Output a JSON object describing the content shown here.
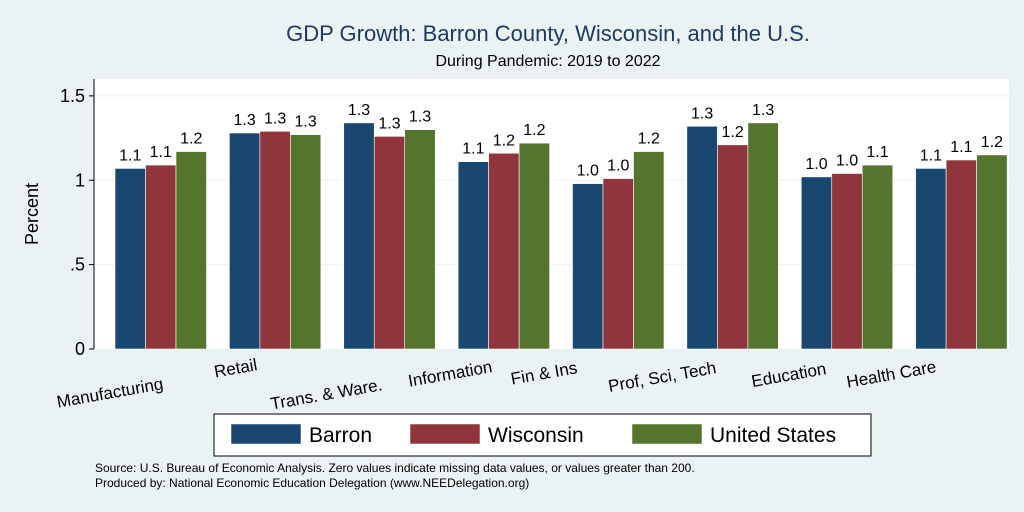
{
  "chart_data": {
    "type": "bar",
    "title": "GDP Growth: Barron County, Wisconsin, and the U.S.",
    "subtitle": "During Pandemic: 2019 to 2022",
    "ylabel": "Percent",
    "xlabel": "",
    "ylim": [
      0,
      1.6
    ],
    "yticks": [
      {
        "value": 0,
        "label": "0"
      },
      {
        "value": 0.5,
        "label": ".5"
      },
      {
        "value": 1,
        "label": "1"
      },
      {
        "value": 1.5,
        "label": "1.5"
      }
    ],
    "grid": true,
    "legend_position": "bottom",
    "categories": [
      "Manufacturing",
      "Retail",
      "Trans. & Ware.",
      "Information",
      "Fin & Ins",
      "Prof, Sci, Tech",
      "Education",
      "Health Care"
    ],
    "series": [
      {
        "name": "Barron",
        "color": "#1a476f",
        "values": [
          1.07,
          1.28,
          1.34,
          1.11,
          0.98,
          1.32,
          1.02,
          1.07
        ],
        "labels": [
          "1.1",
          "1.3",
          "1.3",
          "1.1",
          "1.0",
          "1.3",
          "1.0",
          "1.1"
        ]
      },
      {
        "name": "Wisconsin",
        "color": "#90353b",
        "values": [
          1.09,
          1.29,
          1.26,
          1.16,
          1.01,
          1.21,
          1.04,
          1.12
        ],
        "labels": [
          "1.1",
          "1.3",
          "1.3",
          "1.2",
          "1.0",
          "1.2",
          "1.0",
          "1.1"
        ]
      },
      {
        "name": "United States",
        "color": "#55752f",
        "values": [
          1.17,
          1.27,
          1.3,
          1.22,
          1.17,
          1.34,
          1.09,
          1.15
        ],
        "labels": [
          "1.2",
          "1.3",
          "1.3",
          "1.2",
          "1.2",
          "1.3",
          "1.1",
          "1.2"
        ]
      }
    ]
  },
  "notes": {
    "source": "Source: U.S. Bureau of Economic Analysis. Zero values indicate missing data values, or values greater than 200.",
    "produced": "Produced by: National Economic Education Delegation (www.NEEDelegation.org)"
  }
}
